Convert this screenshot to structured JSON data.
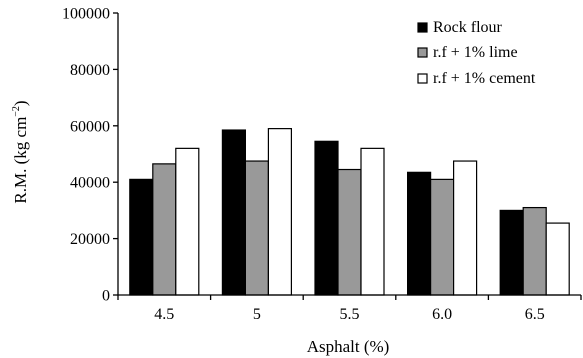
{
  "chart_data": {
    "type": "bar",
    "xlabel": "Asphalt (%)",
    "ylabel": {
      "main": "R.M. (kg cm",
      "superscript": "−2",
      "close": ")"
    },
    "categories": [
      "4.5",
      "5",
      "5.5",
      "6.0",
      "6.5"
    ],
    "ylim": [
      0,
      100000
    ],
    "yticks": [
      "0",
      "20000",
      "40000",
      "60000",
      "80000",
      "100000"
    ],
    "ytick_values": [
      0,
      20000,
      40000,
      60000,
      80000,
      100000
    ],
    "grid": false,
    "legend_position": "top-right",
    "series": [
      {
        "name": "Rock flour",
        "color": "#000000",
        "values": [
          41000,
          58500,
          54500,
          43500,
          30000
        ]
      },
      {
        "name": "r.f + 1% lime",
        "color": "#999999",
        "values": [
          46500,
          47500,
          44500,
          41000,
          31000
        ]
      },
      {
        "name": "r.f + 1% cement",
        "color": "#ffffff",
        "values": [
          52000,
          59000,
          52000,
          47500,
          25500
        ]
      }
    ]
  }
}
